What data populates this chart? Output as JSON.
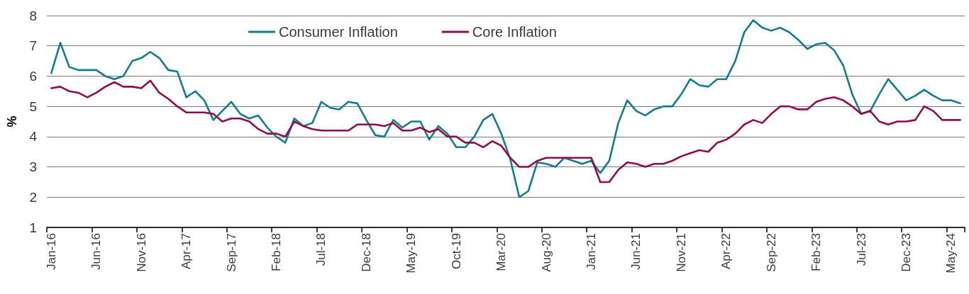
{
  "chart_data": {
    "type": "line",
    "ylabel": "%",
    "categories": [
      "Jan-16",
      null,
      null,
      null,
      null,
      "Jun-16",
      null,
      null,
      null,
      null,
      "Nov-16",
      null,
      null,
      null,
      null,
      "Apr-17",
      null,
      null,
      null,
      null,
      "Sep-17",
      null,
      null,
      null,
      null,
      "Feb-18",
      null,
      null,
      null,
      null,
      "Jul-18",
      null,
      null,
      null,
      null,
      "Dec-18",
      null,
      null,
      null,
      null,
      "May-19",
      null,
      null,
      null,
      null,
      "Oct-19",
      null,
      null,
      null,
      null,
      "Mar-20",
      null,
      null,
      null,
      null,
      "Aug-20",
      null,
      null,
      null,
      null,
      "Jan-21",
      null,
      null,
      null,
      null,
      "Jun-21",
      null,
      null,
      null,
      null,
      "Nov-21",
      null,
      null,
      null,
      null,
      "Apr-22",
      null,
      null,
      null,
      null,
      "Sep-22",
      null,
      null,
      null,
      null,
      "Feb-23",
      null,
      null,
      null,
      null,
      "Jul-23",
      null,
      null,
      null,
      null,
      "Dec-23",
      null,
      null,
      null,
      null,
      "May-24",
      null
    ],
    "series": [
      {
        "name": "Consumer Inflation",
        "color": "#127d8e",
        "values": [
          6.1,
          7.1,
          6.3,
          6.2,
          6.2,
          6.2,
          6.0,
          5.9,
          6.0,
          6.5,
          6.6,
          6.8,
          6.6,
          6.2,
          6.15,
          5.3,
          5.5,
          5.2,
          4.55,
          4.85,
          5.15,
          4.75,
          4.6,
          4.7,
          4.3,
          4.0,
          3.8,
          4.6,
          4.35,
          4.45,
          5.15,
          4.95,
          4.9,
          5.15,
          5.1,
          4.55,
          4.05,
          4.0,
          4.55,
          4.3,
          4.5,
          4.5,
          3.9,
          4.35,
          4.1,
          3.65,
          3.65,
          4.0,
          4.55,
          4.75,
          4.1,
          3.25,
          2.0,
          2.2,
          3.15,
          3.1,
          3.0,
          3.3,
          3.2,
          3.1,
          3.2,
          2.8,
          3.2,
          4.45,
          5.2,
          4.85,
          4.7,
          4.9,
          5.0,
          5.0,
          5.4,
          5.9,
          5.7,
          5.65,
          5.9,
          5.9,
          6.5,
          7.45,
          7.85,
          7.6,
          7.5,
          7.6,
          7.45,
          7.2,
          6.9,
          7.05,
          7.1,
          6.85,
          6.35,
          5.4,
          4.75,
          4.85,
          5.4,
          5.9,
          5.55,
          5.2,
          5.35,
          5.55,
          5.35,
          5.2,
          5.2,
          5.1
        ]
      },
      {
        "name": "Core Inflation",
        "color": "#8e0c4f",
        "values": [
          5.6,
          5.65,
          5.5,
          5.45,
          5.3,
          5.45,
          5.65,
          5.8,
          5.65,
          5.65,
          5.6,
          5.85,
          5.45,
          5.25,
          5.0,
          4.8,
          4.8,
          4.8,
          4.75,
          4.5,
          4.6,
          4.6,
          4.5,
          4.25,
          4.1,
          4.1,
          4.0,
          4.5,
          4.35,
          4.25,
          4.2,
          4.2,
          4.2,
          4.2,
          4.4,
          4.4,
          4.4,
          4.35,
          4.45,
          4.2,
          4.2,
          4.3,
          4.15,
          4.25,
          4.0,
          4.0,
          3.8,
          3.8,
          3.65,
          3.85,
          3.7,
          3.3,
          3.0,
          3.0,
          3.2,
          3.3,
          3.3,
          3.3,
          3.3,
          3.3,
          3.3,
          2.5,
          2.5,
          2.9,
          3.15,
          3.1,
          3.0,
          3.1,
          3.1,
          3.2,
          3.35,
          3.45,
          3.55,
          3.5,
          3.8,
          3.9,
          4.1,
          4.4,
          4.55,
          4.45,
          4.75,
          5.0,
          5.0,
          4.9,
          4.9,
          5.15,
          5.25,
          5.3,
          5.2,
          5.0,
          4.75,
          4.85,
          4.5,
          4.4,
          4.5,
          4.5,
          4.55,
          5.0,
          4.85,
          4.55,
          4.55,
          4.55
        ]
      }
    ],
    "ylim": [
      1,
      8
    ],
    "yticks": [
      1,
      2,
      3,
      4,
      5,
      6,
      7,
      8
    ],
    "grid": "y",
    "legend": "top",
    "line_style": "solid"
  }
}
